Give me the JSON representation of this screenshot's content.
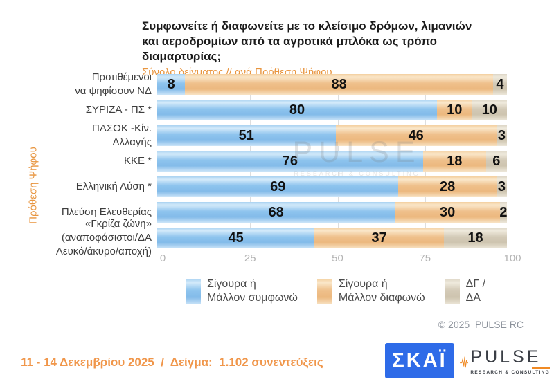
{
  "header": {
    "title": "Συμφωνείτε ή διαφωνείτε με το κλείσιμο δρόμων, λιμανιών και αεροδρομίων από τα αγροτικά μπλόκα ως τρόπο διαμαρτυρίας;",
    "subtitle": "Σύνολο δείγματος // ανά Πρόθεση Ψήφου"
  },
  "chart_data": {
    "type": "bar",
    "orientation": "horizontal",
    "stacked": true,
    "ylabel": "Πρόθεση Ψήφου",
    "categories": [
      "Προτιθέμενοι\nνα ψηφίσουν ΝΔ",
      "ΣΥΡΙΖΑ - ΠΣ *",
      "ΠΑΣΟΚ -Κίν.\nΑλλαγής",
      "ΚΚΕ *",
      "Ελληνική Λύση *",
      "Πλεύση Ελευθερίας",
      "«Γκρίζα ζώνη»\n(αναποφάσιστοι/ΔΑ\nΛευκό/άκυρο/αποχή)"
    ],
    "series": [
      {
        "name": "Σίγουρα ή\nΜάλλον συμφωνώ",
        "color": "#8EC4EE",
        "values": [
          8,
          80,
          51,
          76,
          69,
          68,
          45
        ]
      },
      {
        "name": "Σίγουρα ή\nΜάλλον διαφωνώ",
        "color": "#EFC08B",
        "values": [
          88,
          10,
          46,
          18,
          28,
          30,
          37
        ]
      },
      {
        "name": "ΔΓ /\nΔΑ",
        "color": "#D3CAB7",
        "values": [
          4,
          10,
          3,
          6,
          3,
          2,
          18
        ]
      }
    ],
    "xlim": [
      0,
      100
    ],
    "x_ticks": [
      0,
      25,
      50,
      75,
      100
    ],
    "gridlines_at": [
      25,
      50,
      75
    ],
    "legend_position": "bottom-center"
  },
  "watermark": {
    "line1": "PULSE",
    "line2": "RESEARCH & CONSULTING"
  },
  "copyright": "© 2025  PULSE RC",
  "footer": {
    "note": "11 - 14 Δεκεμβρίου 2025  /  Δείγμα:  1.102 συνεντεύξεις",
    "skai_logo_text": "ΣΚΑΪ",
    "pulse_logo": {
      "name": "PULSE",
      "tagline": "RESEARCH & CONSULTING"
    }
  },
  "colors": {
    "accent_orange": "#E8953F",
    "footer_orange": "#F0964A",
    "skai_blue": "#2E6BE8",
    "axis_tick": "#B3B3B3",
    "title_text": "#1B1B1B"
  }
}
